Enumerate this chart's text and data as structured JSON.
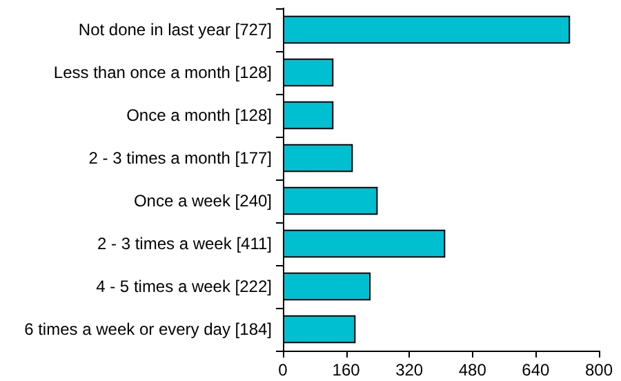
{
  "chart_data": {
    "type": "bar",
    "orientation": "horizontal",
    "categories": [
      "Not done in last year [727]",
      "Less than once a month [128]",
      "Once a month [128]",
      "2 - 3 times a month [177]",
      "Once a week [240]",
      "2 - 3 times a week [411]",
      "4 - 5 times a week [222]",
      "6 times a week or every day [184]"
    ],
    "values": [
      727,
      128,
      128,
      177,
      240,
      411,
      222,
      184
    ],
    "color": "#00bfd0",
    "xlim": [
      0,
      800
    ],
    "xticks": [
      0,
      160,
      320,
      480,
      640,
      800
    ],
    "grid": false
  }
}
